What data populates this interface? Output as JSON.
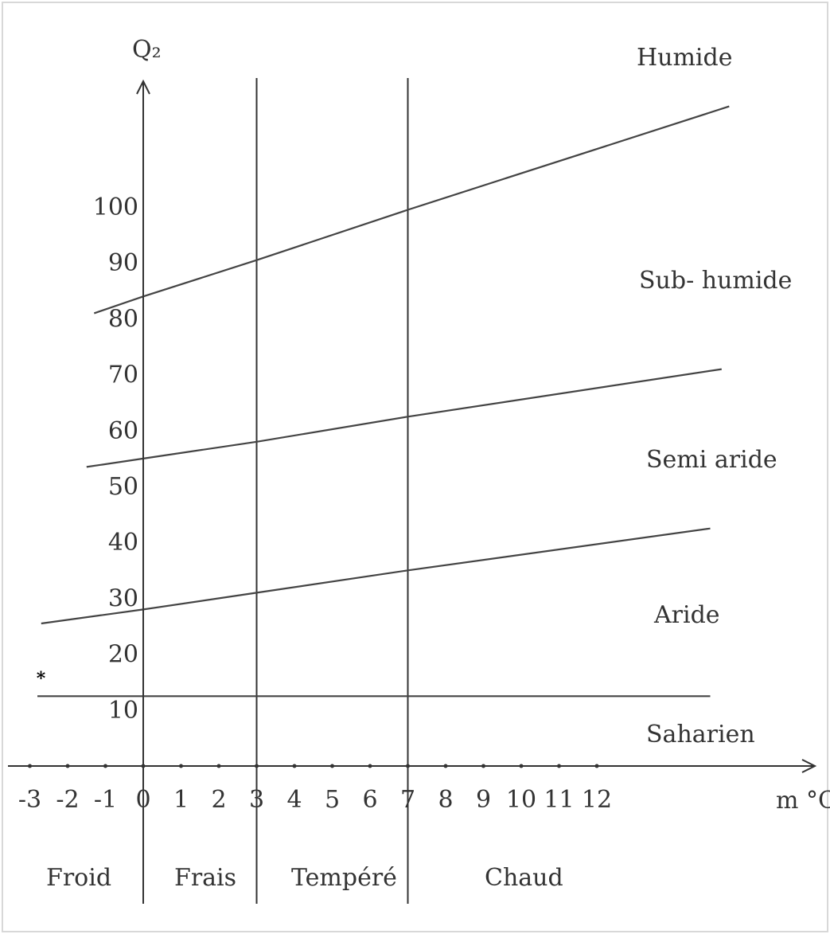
{
  "chart_data": {
    "type": "line",
    "title": "",
    "xlabel": "m °C",
    "ylabel": "Q₂",
    "xlim": [
      -3.5,
      17.5
    ],
    "ylim": [
      0,
      125
    ],
    "x_ticks": [
      "-3",
      "-2",
      "-1",
      "0",
      "1",
      "2",
      "3",
      "4",
      "5",
      "6",
      "7",
      "8",
      "9",
      "10",
      "11",
      "12"
    ],
    "y_ticks": [
      "10",
      "20",
      "30",
      "40",
      "50",
      "60",
      "70",
      "80",
      "90",
      "100"
    ],
    "vertical_dividers": [
      3,
      7
    ],
    "series": [
      {
        "x": [
          -1.3,
          0,
          3,
          7,
          15.5
        ],
        "y": [
          81,
          84,
          90.5,
          99.5,
          118
        ]
      },
      {
        "x": [
          -1.5,
          0,
          3,
          7,
          15.3
        ],
        "y": [
          53.5,
          55,
          58,
          62.5,
          71
        ]
      },
      {
        "x": [
          -2.7,
          0,
          3,
          7,
          15.0
        ],
        "y": [
          25.5,
          28,
          31,
          35,
          42.5
        ]
      },
      {
        "x": [
          -2.8,
          15.0
        ],
        "y": [
          12.5,
          12.5
        ]
      }
    ],
    "marker": {
      "x": -2.7,
      "y": 16
    },
    "zone_labels": [
      "Humide",
      "Sub- humide",
      "Semi aride",
      "Aride",
      "Saharien"
    ],
    "temperature_labels": [
      "Froid",
      "Frais",
      "Tempéré",
      "Chaud"
    ]
  }
}
